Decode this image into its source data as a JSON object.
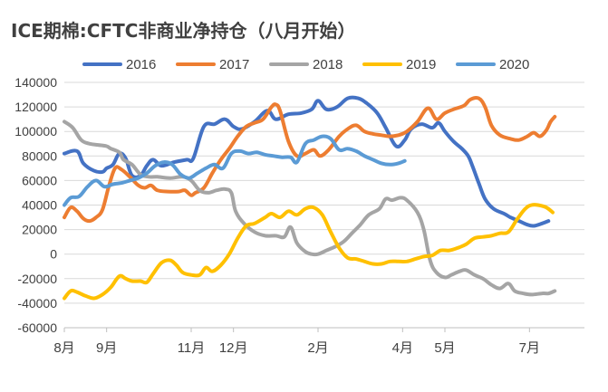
{
  "chart_data": {
    "type": "line",
    "title": "ICE期棉:CFTC非商业净持仓（八月开始）",
    "xlabel": "",
    "ylabel": "",
    "x_domain": [
      0,
      12.3
    ],
    "ylim": [
      -60000,
      140000
    ],
    "y_ticks": [
      -60000,
      -40000,
      -20000,
      0,
      20000,
      40000,
      60000,
      80000,
      100000,
      120000,
      140000
    ],
    "grid": true,
    "legend_position": "top",
    "x_ticks": [
      {
        "label": "8月",
        "x": 0
      },
      {
        "label": "9月",
        "x": 1
      },
      {
        "label": "11月",
        "x": 3
      },
      {
        "label": "12月",
        "x": 4
      },
      {
        "label": "2月",
        "x": 6
      },
      {
        "label": "4月",
        "x": 8
      },
      {
        "label": "5月",
        "x": 9
      },
      {
        "label": "7月",
        "x": 11
      }
    ],
    "series": [
      {
        "name": "2016",
        "color": "#4472C4",
        "points": [
          [
            0,
            82000
          ],
          [
            0.3,
            84000
          ],
          [
            0.45,
            74000
          ],
          [
            0.7,
            68000
          ],
          [
            0.9,
            67000
          ],
          [
            1.0,
            70000
          ],
          [
            1.15,
            73000
          ],
          [
            1.3,
            82000
          ],
          [
            1.45,
            78000
          ],
          [
            1.6,
            64000
          ],
          [
            1.8,
            64000
          ],
          [
            1.95,
            72000
          ],
          [
            2.1,
            77000
          ],
          [
            2.3,
            72000
          ],
          [
            2.6,
            75000
          ],
          [
            2.9,
            77000
          ],
          [
            3.05,
            78000
          ],
          [
            3.3,
            104000
          ],
          [
            3.55,
            106000
          ],
          [
            3.8,
            110000
          ],
          [
            4.0,
            104000
          ],
          [
            4.2,
            102000
          ],
          [
            4.5,
            108000
          ],
          [
            4.8,
            117000
          ],
          [
            5.0,
            110000
          ],
          [
            5.3,
            114000
          ],
          [
            5.6,
            115000
          ],
          [
            5.85,
            118000
          ],
          [
            6.0,
            125000
          ],
          [
            6.2,
            118000
          ],
          [
            6.45,
            120000
          ],
          [
            6.7,
            127000
          ],
          [
            6.95,
            127000
          ],
          [
            7.15,
            123000
          ],
          [
            7.4,
            115000
          ],
          [
            7.6,
            103000
          ],
          [
            7.85,
            88000
          ],
          [
            8.05,
            93000
          ],
          [
            8.2,
            102000
          ],
          [
            8.45,
            106000
          ],
          [
            8.7,
            103000
          ],
          [
            8.85,
            107000
          ],
          [
            9.0,
            100000
          ],
          [
            9.2,
            92000
          ],
          [
            9.4,
            86000
          ],
          [
            9.55,
            80000
          ],
          [
            9.65,
            72000
          ],
          [
            9.8,
            58000
          ],
          [
            9.95,
            45000
          ],
          [
            10.15,
            37000
          ],
          [
            10.4,
            33000
          ],
          [
            10.55,
            30000
          ],
          [
            10.75,
            27000
          ],
          [
            10.95,
            24000
          ],
          [
            11.1,
            23000
          ],
          [
            11.3,
            25000
          ],
          [
            11.45,
            27000
          ]
        ]
      },
      {
        "name": "2017",
        "color": "#ED7D31",
        "points": [
          [
            0,
            30000
          ],
          [
            0.15,
            38000
          ],
          [
            0.3,
            35000
          ],
          [
            0.45,
            29000
          ],
          [
            0.6,
            27000
          ],
          [
            0.75,
            30000
          ],
          [
            0.9,
            36000
          ],
          [
            1.05,
            55000
          ],
          [
            1.2,
            70000
          ],
          [
            1.35,
            69000
          ],
          [
            1.55,
            63000
          ],
          [
            1.75,
            56000
          ],
          [
            1.9,
            54000
          ],
          [
            2.05,
            56000
          ],
          [
            2.2,
            52000
          ],
          [
            2.45,
            51000
          ],
          [
            2.7,
            51000
          ],
          [
            2.85,
            52000
          ],
          [
            3.0,
            48000
          ],
          [
            3.1,
            50000
          ],
          [
            3.3,
            54000
          ],
          [
            3.5,
            66000
          ],
          [
            3.7,
            77000
          ],
          [
            3.9,
            86000
          ],
          [
            4.1,
            96000
          ],
          [
            4.3,
            104000
          ],
          [
            4.5,
            107000
          ],
          [
            4.7,
            110000
          ],
          [
            4.9,
            120000
          ],
          [
            5.0,
            122000
          ],
          [
            5.1,
            117000
          ],
          [
            5.3,
            92000
          ],
          [
            5.5,
            80000
          ],
          [
            5.7,
            82000
          ],
          [
            5.9,
            85000
          ],
          [
            6.05,
            80000
          ],
          [
            6.25,
            85000
          ],
          [
            6.5,
            96000
          ],
          [
            6.7,
            102000
          ],
          [
            6.9,
            105000
          ],
          [
            7.1,
            100000
          ],
          [
            7.3,
            98000
          ],
          [
            7.5,
            97000
          ],
          [
            7.7,
            96000
          ],
          [
            7.9,
            97000
          ],
          [
            8.1,
            100000
          ],
          [
            8.35,
            108000
          ],
          [
            8.6,
            119000
          ],
          [
            8.8,
            110000
          ],
          [
            9.0,
            115000
          ],
          [
            9.2,
            118000
          ],
          [
            9.45,
            121000
          ],
          [
            9.6,
            126000
          ],
          [
            9.8,
            127000
          ],
          [
            9.95,
            120000
          ],
          [
            10.1,
            105000
          ],
          [
            10.3,
            97000
          ],
          [
            10.55,
            94000
          ],
          [
            10.75,
            93000
          ],
          [
            10.95,
            96000
          ],
          [
            11.1,
            99000
          ],
          [
            11.25,
            96000
          ],
          [
            11.4,
            101000
          ],
          [
            11.5,
            108000
          ],
          [
            11.6,
            112000
          ]
        ]
      },
      {
        "name": "2018",
        "color": "#A5A5A5",
        "points": [
          [
            0,
            108000
          ],
          [
            0.2,
            103000
          ],
          [
            0.4,
            93000
          ],
          [
            0.6,
            90000
          ],
          [
            0.8,
            89000
          ],
          [
            1.0,
            88000
          ],
          [
            1.1,
            86000
          ],
          [
            1.3,
            83000
          ],
          [
            1.4,
            77000
          ],
          [
            1.6,
            73000
          ],
          [
            1.8,
            65000
          ],
          [
            2.0,
            63000
          ],
          [
            2.2,
            63000
          ],
          [
            2.5,
            62000
          ],
          [
            2.8,
            63000
          ],
          [
            3.0,
            60000
          ],
          [
            3.2,
            52000
          ],
          [
            3.4,
            50000
          ],
          [
            3.6,
            52000
          ],
          [
            3.8,
            53000
          ],
          [
            3.95,
            50000
          ],
          [
            4.05,
            35000
          ],
          [
            4.25,
            25000
          ],
          [
            4.5,
            18000
          ],
          [
            4.75,
            15000
          ],
          [
            5.0,
            15000
          ],
          [
            5.2,
            14000
          ],
          [
            5.35,
            22000
          ],
          [
            5.5,
            9000
          ],
          [
            5.7,
            2000
          ],
          [
            5.85,
            0
          ],
          [
            6.0,
            0
          ],
          [
            6.2,
            3000
          ],
          [
            6.4,
            6000
          ],
          [
            6.6,
            10000
          ],
          [
            6.8,
            17000
          ],
          [
            7.0,
            24000
          ],
          [
            7.2,
            32000
          ],
          [
            7.45,
            37000
          ],
          [
            7.6,
            45000
          ],
          [
            7.75,
            44000
          ],
          [
            7.95,
            46000
          ],
          [
            8.1,
            44000
          ],
          [
            8.35,
            34000
          ],
          [
            8.5,
            20000
          ],
          [
            8.65,
            -5000
          ],
          [
            8.8,
            -15000
          ],
          [
            9.0,
            -19000
          ],
          [
            9.15,
            -17000
          ],
          [
            9.35,
            -14000
          ],
          [
            9.5,
            -13000
          ],
          [
            9.7,
            -17000
          ],
          [
            9.9,
            -20000
          ],
          [
            10.1,
            -25000
          ],
          [
            10.3,
            -28000
          ],
          [
            10.5,
            -24000
          ],
          [
            10.65,
            -30000
          ],
          [
            10.85,
            -32000
          ],
          [
            11.05,
            -33000
          ],
          [
            11.3,
            -32000
          ],
          [
            11.45,
            -32000
          ],
          [
            11.6,
            -30000
          ]
        ]
      },
      {
        "name": "2019",
        "color": "#FFC000",
        "points": [
          [
            0,
            -36000
          ],
          [
            0.15,
            -30000
          ],
          [
            0.3,
            -31000
          ],
          [
            0.5,
            -34000
          ],
          [
            0.7,
            -36000
          ],
          [
            0.9,
            -33000
          ],
          [
            1.1,
            -27000
          ],
          [
            1.3,
            -18000
          ],
          [
            1.45,
            -20000
          ],
          [
            1.6,
            -22000
          ],
          [
            1.8,
            -22000
          ],
          [
            1.95,
            -23000
          ],
          [
            2.1,
            -16000
          ],
          [
            2.3,
            -7000
          ],
          [
            2.5,
            -5000
          ],
          [
            2.65,
            -9000
          ],
          [
            2.8,
            -15000
          ],
          [
            3.0,
            -17000
          ],
          [
            3.2,
            -17000
          ],
          [
            3.35,
            -11000
          ],
          [
            3.5,
            -14000
          ],
          [
            3.7,
            -9000
          ],
          [
            3.9,
            0
          ],
          [
            4.1,
            13000
          ],
          [
            4.3,
            23000
          ],
          [
            4.5,
            25000
          ],
          [
            4.75,
            30000
          ],
          [
            4.9,
            33000
          ],
          [
            5.1,
            30000
          ],
          [
            5.3,
            35000
          ],
          [
            5.5,
            32000
          ],
          [
            5.7,
            37000
          ],
          [
            5.9,
            38000
          ],
          [
            6.1,
            32000
          ],
          [
            6.3,
            18000
          ],
          [
            6.5,
            5000
          ],
          [
            6.7,
            -3000
          ],
          [
            6.9,
            -4000
          ],
          [
            7.1,
            -6000
          ],
          [
            7.3,
            -8000
          ],
          [
            7.5,
            -8000
          ],
          [
            7.7,
            -6000
          ],
          [
            7.9,
            -6000
          ],
          [
            8.1,
            -6000
          ],
          [
            8.3,
            -4000
          ],
          [
            8.5,
            -2000
          ],
          [
            8.7,
            -1000
          ],
          [
            8.9,
            3000
          ],
          [
            9.1,
            3000
          ],
          [
            9.3,
            5000
          ],
          [
            9.5,
            8000
          ],
          [
            9.7,
            13000
          ],
          [
            9.9,
            14000
          ],
          [
            10.1,
            15000
          ],
          [
            10.3,
            17000
          ],
          [
            10.5,
            18000
          ],
          [
            10.7,
            28000
          ],
          [
            10.9,
            37000
          ],
          [
            11.05,
            40000
          ],
          [
            11.2,
            40000
          ],
          [
            11.4,
            38000
          ],
          [
            11.55,
            34000
          ]
        ]
      },
      {
        "name": "2020",
        "color": "#5B9BD5",
        "points": [
          [
            0,
            40000
          ],
          [
            0.15,
            46000
          ],
          [
            0.35,
            47000
          ],
          [
            0.55,
            55000
          ],
          [
            0.75,
            60000
          ],
          [
            0.95,
            55000
          ],
          [
            1.15,
            57000
          ],
          [
            1.35,
            58000
          ],
          [
            1.55,
            60000
          ],
          [
            1.75,
            62000
          ],
          [
            1.95,
            66000
          ],
          [
            2.15,
            72000
          ],
          [
            2.35,
            75000
          ],
          [
            2.55,
            73000
          ],
          [
            2.75,
            65000
          ],
          [
            2.95,
            62000
          ],
          [
            3.15,
            66000
          ],
          [
            3.35,
            70000
          ],
          [
            3.55,
            73000
          ],
          [
            3.75,
            70000
          ],
          [
            3.95,
            82000
          ],
          [
            4.15,
            84000
          ],
          [
            4.35,
            82000
          ],
          [
            4.55,
            83000
          ],
          [
            4.75,
            81000
          ],
          [
            4.95,
            80000
          ],
          [
            5.15,
            79000
          ],
          [
            5.35,
            79000
          ],
          [
            5.5,
            75000
          ],
          [
            5.7,
            90000
          ],
          [
            5.9,
            93000
          ],
          [
            6.1,
            96000
          ],
          [
            6.3,
            94000
          ],
          [
            6.5,
            85000
          ],
          [
            6.7,
            86000
          ],
          [
            6.9,
            84000
          ],
          [
            7.1,
            80000
          ],
          [
            7.3,
            77000
          ],
          [
            7.5,
            74000
          ],
          [
            7.7,
            73000
          ],
          [
            7.9,
            74000
          ],
          [
            8.05,
            76000
          ]
        ]
      }
    ]
  }
}
